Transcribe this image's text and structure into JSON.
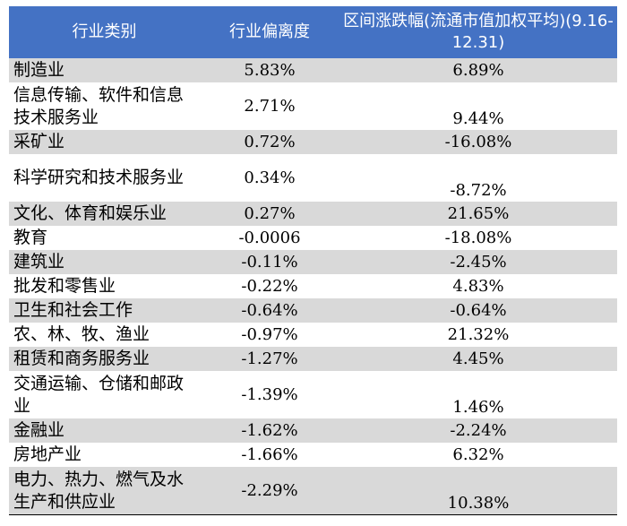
{
  "table": {
    "headers": {
      "industry": "行业类别",
      "deviation": "行业偏离度",
      "return": "区间涨跌幅(流通市值加权平均)(9.16-12.31)"
    },
    "rows": [
      {
        "industry": "制造业",
        "deviation": "5.83%",
        "return": "6.89%",
        "tall": false
      },
      {
        "industry": "信息传输、软件和信息技术服务业",
        "deviation": "2.71%",
        "return": "9.44%",
        "tall": true
      },
      {
        "industry": "采矿业",
        "deviation": "0.72%",
        "return": "-16.08%",
        "tall": false
      },
      {
        "industry": "科学研究和技术服务业",
        "deviation": "0.34%",
        "return": "-8.72%",
        "tall": true
      },
      {
        "industry": "文化、体育和娱乐业",
        "deviation": "0.27%",
        "return": "21.65%",
        "tall": false
      },
      {
        "industry": "教育",
        "deviation": "-0.0006",
        "return": "-18.08%",
        "tall": false
      },
      {
        "industry": "建筑业",
        "deviation": "-0.11%",
        "return": "-2.45%",
        "tall": false
      },
      {
        "industry": "批发和零售业",
        "deviation": "-0.22%",
        "return": "4.83%",
        "tall": false
      },
      {
        "industry": "卫生和社会工作",
        "deviation": "-0.64%",
        "return": "-0.64%",
        "tall": false
      },
      {
        "industry": "农、林、牧、渔业",
        "deviation": "-0.97%",
        "return": "21.32%",
        "tall": false
      },
      {
        "industry": "租赁和商务服务业",
        "deviation": "-1.27%",
        "return": "4.45%",
        "tall": false
      },
      {
        "industry": "交通运输、仓储和邮政业",
        "deviation": "-1.39%",
        "return": "1.46%",
        "tall": true
      },
      {
        "industry": "金融业",
        "deviation": "-1.62%",
        "return": "-2.24%",
        "tall": false
      },
      {
        "industry": "房地产业",
        "deviation": "-1.66%",
        "return": "6.32%",
        "tall": false
      },
      {
        "industry": "电力、热力、燃气及水生产和供应业",
        "deviation": "-2.29%",
        "return": "10.38%",
        "tall": true
      }
    ]
  }
}
